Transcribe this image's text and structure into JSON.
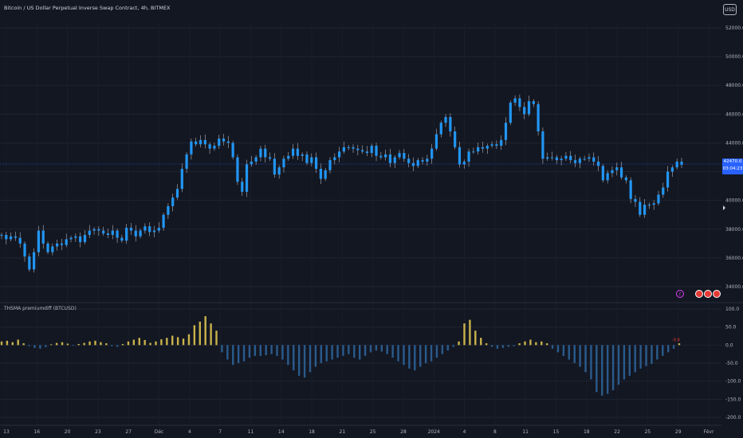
{
  "header": {
    "title": "Bitcoin / US Dollar Perpetual Inverse Swap Contract, 4h, BITMEX"
  },
  "currency_button": "USD",
  "indicator": {
    "title": "THSMA premiumdiff (BTCUSD)"
  },
  "price_tag": {
    "price": "42470.0",
    "countdown": "03:04:23"
  },
  "colors": {
    "background": "#131722",
    "candles": "#2196f3",
    "bull_hist": "#c9b24a",
    "bear_hist": "#2a5b8c",
    "accent": "#2962ff"
  },
  "chart_data": [
    {
      "type": "line",
      "series": [
        {
          "values": [
            37600,
            37300,
            37500,
            37400,
            37000,
            36100,
            35200,
            36400,
            37900,
            37000,
            36400,
            36800,
            37000,
            36900,
            37300,
            37400,
            37500,
            37100,
            37600,
            37900,
            38000,
            37900,
            37700,
            37600,
            37900,
            37400,
            37200,
            38100,
            37900,
            37500,
            37900,
            38200,
            37800,
            37900,
            38100,
            39000,
            39600,
            40200,
            40800,
            42200,
            43200,
            44100,
            43900,
            44200,
            43900,
            43600,
            43800,
            44300,
            44100,
            44000,
            43000,
            41300,
            40600,
            42500,
            42700,
            43000,
            43600,
            43000,
            42900,
            41800,
            42300,
            42900,
            43100,
            43600,
            43100,
            43200,
            42600,
            43000,
            42200,
            41500,
            42100,
            42800,
            43000,
            43400,
            43700,
            43700,
            43600,
            43500,
            43400,
            43300,
            43800,
            43100,
            43000,
            43200,
            42600,
            43000,
            43300,
            42900,
            42600,
            42400,
            42800,
            42700,
            42900,
            43600,
            44600,
            45400,
            45800,
            44800,
            43700,
            42500,
            42700,
            43400,
            43400,
            43700,
            43600,
            43800,
            43900,
            43800,
            44200,
            45400,
            46800,
            47100,
            46500,
            46000,
            46900,
            46700,
            44800,
            42900,
            43000,
            43000,
            42800,
            42900,
            43100,
            42800,
            42600,
            42900,
            42900,
            43000,
            42700,
            42400,
            41400,
            41900,
            42100,
            42300,
            41600,
            41400,
            40100,
            39900,
            39000,
            39700,
            39700,
            39800,
            40400,
            40900,
            42000,
            42300,
            42700,
            42470
          ]
        }
      ],
      "x_tick_labels": [
        "13",
        "16",
        "20",
        "23",
        "27",
        "Déc",
        "4",
        "7",
        "11",
        "14",
        "18",
        "21",
        "25",
        "28",
        "2024",
        "4",
        "8",
        "11",
        "15",
        "18",
        "22",
        "25",
        "29",
        "Févr"
      ],
      "y_tick_labels": [
        "52000.0",
        "50000.0",
        "48000.0",
        "46000.0",
        "44000.0",
        "42000.0",
        "40000.0",
        "38000.0",
        "36000.0",
        "34000.0"
      ],
      "ylim": [
        33400,
        53000
      ]
    },
    {
      "type": "bar",
      "series": [
        {
          "name": "THSMA premiumdiff (BTCUSD)",
          "values": [
            10,
            12,
            8,
            15,
            5,
            -3,
            -8,
            -10,
            -6,
            2,
            6,
            8,
            4,
            -2,
            3,
            6,
            10,
            12,
            8,
            5,
            -3,
            -5,
            3,
            10,
            15,
            20,
            14,
            6,
            10,
            16,
            20,
            26,
            22,
            18,
            30,
            55,
            65,
            80,
            60,
            40,
            -20,
            -40,
            -55,
            -50,
            -45,
            -35,
            -30,
            -30,
            -28,
            -25,
            -30,
            -40,
            -55,
            -70,
            -85,
            -90,
            -75,
            -60,
            -50,
            -45,
            -40,
            -35,
            -30,
            -25,
            -35,
            -40,
            -30,
            -20,
            -15,
            -18,
            -25,
            -35,
            -45,
            -55,
            -65,
            -70,
            -60,
            -50,
            -45,
            -35,
            -25,
            -15,
            -5,
            10,
            60,
            70,
            40,
            20,
            5,
            -5,
            -10,
            -8,
            -5,
            -3,
            5,
            10,
            15,
            8,
            10,
            5,
            -10,
            -20,
            -30,
            -40,
            -50,
            -60,
            -75,
            -95,
            -130,
            -140,
            -135,
            -125,
            -110,
            -95,
            -85,
            -75,
            -65,
            -58,
            -52,
            -40,
            -30,
            -20,
            -10,
            5
          ],
          "annotations": [
            "-9.8"
          ]
        }
      ],
      "y_tick_labels": [
        "100.0",
        "50.0",
        "0.0",
        "-50.0",
        "-100.0",
        "-150.0",
        "-200.0"
      ],
      "ylim": [
        -200,
        100
      ]
    }
  ]
}
